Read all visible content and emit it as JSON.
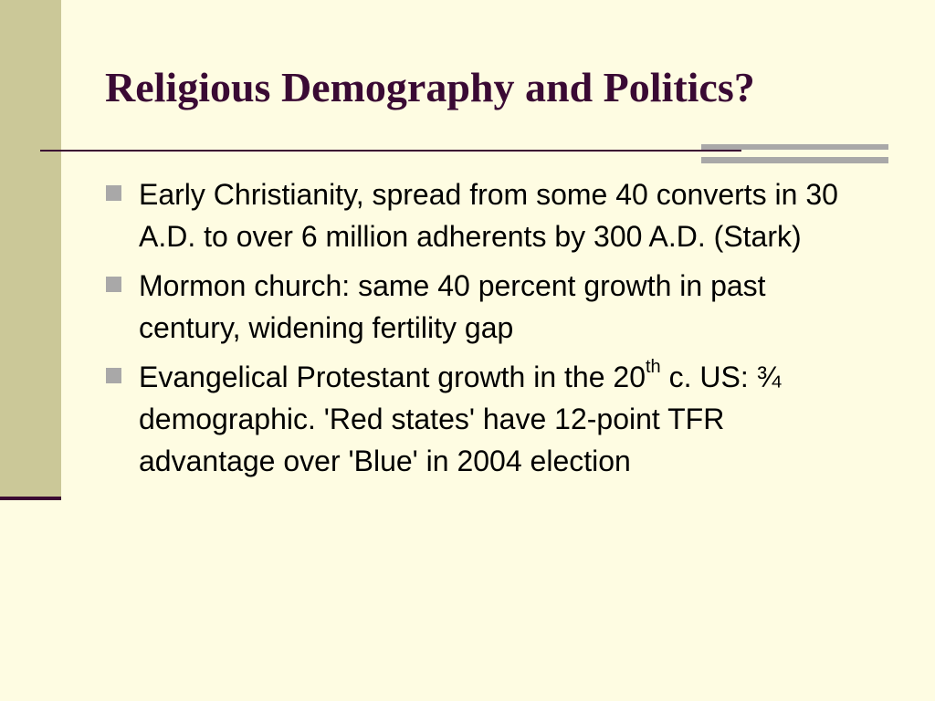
{
  "slide": {
    "title": "Religious Demography and Politics?",
    "bullets": [
      {
        "text": "Early Christianity, spread from some 40 converts in 30 A.D. to over 6 million adherents by 300 A.D. (Stark)"
      },
      {
        "text": "Mormon church: same 40 percent growth in past century, widening fertility gap"
      },
      {
        "text_before": "Evangelical Protestant growth in the 20",
        "superscript": "th",
        "text_after": " c. US: ¾ demographic. 'Red states' have 12-point TFR advantage over 'Blue' in 2004 election"
      }
    ]
  },
  "colors": {
    "background": "#fefce2",
    "left_band": "#cbc898",
    "title_text": "#3a0a34",
    "rule": "#3b0a33",
    "accent": "#a9a8a8",
    "bullet_marker": "#a9a8a8",
    "body_text": "#000000"
  }
}
